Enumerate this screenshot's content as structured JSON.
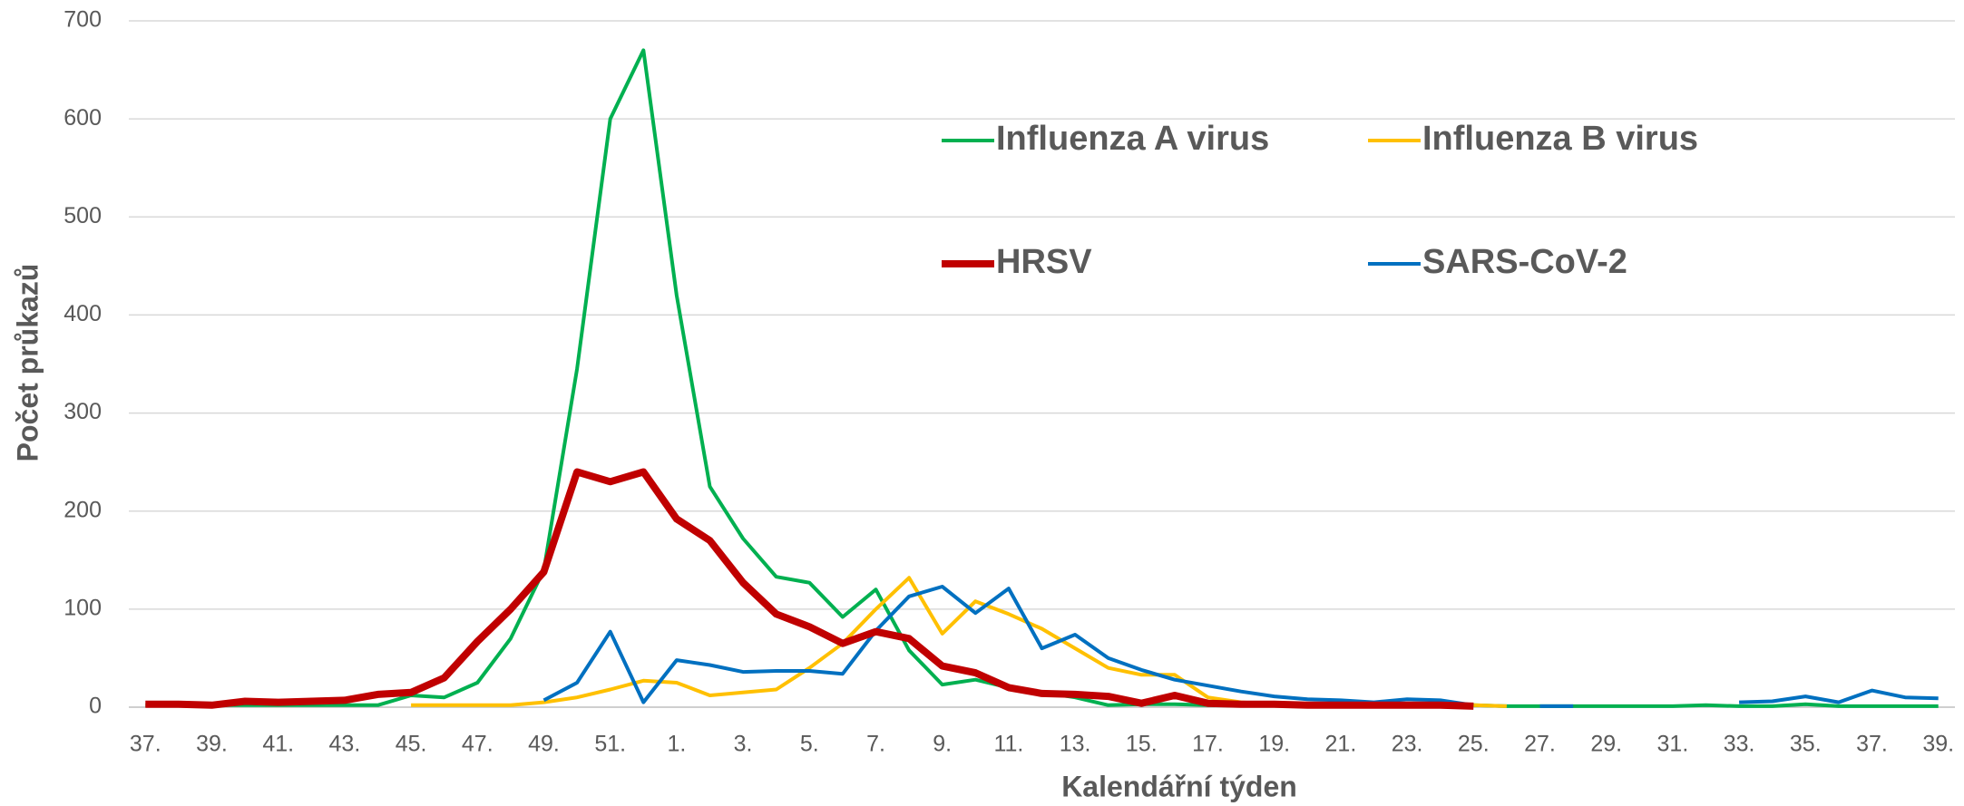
{
  "chart_data": {
    "type": "line",
    "xlabel": "Kalendářní týden",
    "ylabel": "Počet průkazů",
    "categories": [
      "37.",
      null,
      "39.",
      null,
      "41.",
      null,
      "43.",
      null,
      "45.",
      null,
      "47.",
      null,
      "49.",
      null,
      "51.",
      null,
      "1.",
      null,
      "3.",
      null,
      "5.",
      null,
      "7.",
      null,
      "9.",
      null,
      "11.",
      null,
      "13.",
      null,
      "15.",
      null,
      "17.",
      null,
      "19.",
      null,
      "21.",
      null,
      "23.",
      null,
      "25.",
      null,
      "27.",
      null,
      "29.",
      null,
      "31.",
      null,
      "33.",
      null,
      "35.",
      null,
      "37.",
      null,
      "39."
    ],
    "series": [
      {
        "name": "Influenza A virus",
        "color": "#00b050",
        "width": 4,
        "values": [
          2,
          2,
          2,
          2,
          2,
          2,
          2,
          2,
          12,
          10,
          25,
          70,
          140,
          345,
          600,
          670,
          420,
          225,
          172,
          133,
          127,
          92,
          120,
          58,
          23,
          28,
          20,
          15,
          10,
          2,
          3,
          3,
          2,
          2,
          2,
          2,
          2,
          2,
          2,
          2,
          2,
          1,
          1,
          1,
          1,
          1,
          1,
          2,
          1,
          1,
          3,
          1,
          1,
          1,
          1
        ]
      },
      {
        "name": "Influenza B virus",
        "color": "#ffc000",
        "width": 4,
        "values": [
          null,
          null,
          null,
          null,
          null,
          null,
          null,
          null,
          2,
          2,
          2,
          2,
          5,
          10,
          18,
          27,
          25,
          12,
          15,
          18,
          40,
          65,
          100,
          132,
          75,
          108,
          95,
          80,
          60,
          40,
          33,
          33,
          10,
          5,
          3,
          2,
          2,
          2,
          2,
          2,
          2,
          1,
          null,
          null,
          null,
          null,
          null,
          null,
          null,
          null,
          null,
          null,
          null,
          null,
          null
        ]
      },
      {
        "name": "HRSV",
        "color": "#c00000",
        "width": 8,
        "values": [
          3,
          3,
          2,
          6,
          5,
          6,
          7,
          13,
          15,
          30,
          67,
          100,
          138,
          240,
          230,
          240,
          192,
          170,
          127,
          95,
          82,
          65,
          77,
          70,
          42,
          35,
          20,
          14,
          13,
          11,
          4,
          12,
          4,
          3,
          3,
          2,
          2,
          2,
          2,
          2,
          1,
          null,
          null,
          null,
          null,
          null,
          null,
          null,
          null,
          null,
          null,
          null,
          null,
          null,
          null
        ]
      },
      {
        "name": "SARS-CoV-2",
        "color": "#0070c0",
        "width": 4,
        "values": [
          null,
          null,
          null,
          null,
          null,
          null,
          null,
          null,
          null,
          null,
          null,
          null,
          7,
          25,
          77,
          5,
          48,
          43,
          36,
          37,
          37,
          34,
          78,
          113,
          123,
          96,
          121,
          60,
          74,
          50,
          38,
          28,
          22,
          16,
          11,
          8,
          7,
          5,
          8,
          7,
          2,
          null,
          1,
          1,
          null,
          null,
          null,
          null,
          5,
          6,
          11,
          5,
          17,
          10,
          9
        ]
      }
    ],
    "ylim": [
      0,
      700
    ],
    "yticks": [
      0,
      100,
      200,
      300,
      400,
      500,
      600,
      700
    ],
    "grid": true
  }
}
